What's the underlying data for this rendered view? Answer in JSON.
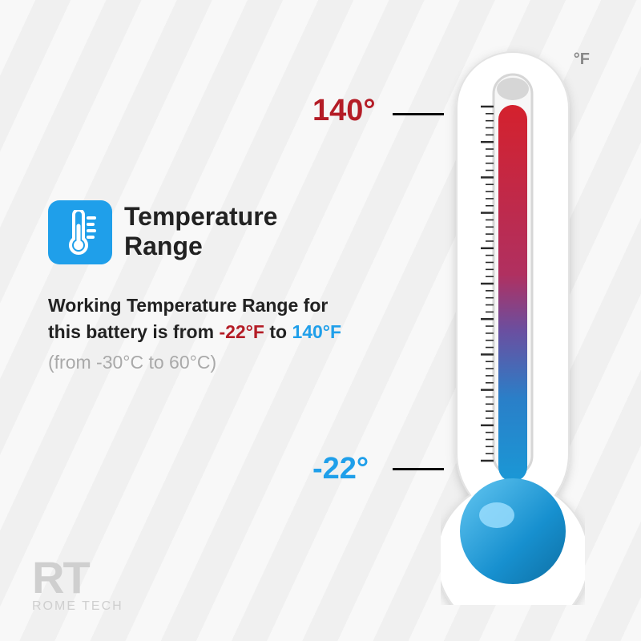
{
  "heading": "Temperature\nRange",
  "body": {
    "prefix": "Working Temperature Range for this battery is from ",
    "low_f": "-22°F",
    "mid": " to ",
    "high_f": "140°F",
    "note": "(from -30°C to 60°C)"
  },
  "thermometer": {
    "unit": "°F",
    "high_label": "140°",
    "low_label": "-22°",
    "high_color": "#b41c26",
    "low_color": "#1f9fea",
    "gradient_top": "#d4212d",
    "gradient_mid": "#7a3a7a",
    "gradient_bottom": "#1a98d6",
    "tube_border": "#d6d6d6",
    "casing_fill": "#ffffff",
    "casing_stroke": "#e3e3e3",
    "tick_color": "#2a2a2a",
    "tick_count_major": 10,
    "tick_count_minor": 50
  },
  "icon": {
    "bg": "#1f9fea",
    "fg": "#ffffff"
  },
  "logo": {
    "mark": "RT",
    "text": "ROME TECH",
    "color": "#cfcfcf"
  },
  "colors": {
    "background_stripe_a": "#f8f8f8",
    "background_stripe_b": "#f0f0f0",
    "text": "#222222",
    "muted": "#a9a9a9"
  },
  "typography": {
    "heading_fontsize": 32,
    "heading_weight": 800,
    "body_fontsize": 23,
    "body_weight": 600,
    "callout_fontsize": 38,
    "callout_weight": 900
  }
}
